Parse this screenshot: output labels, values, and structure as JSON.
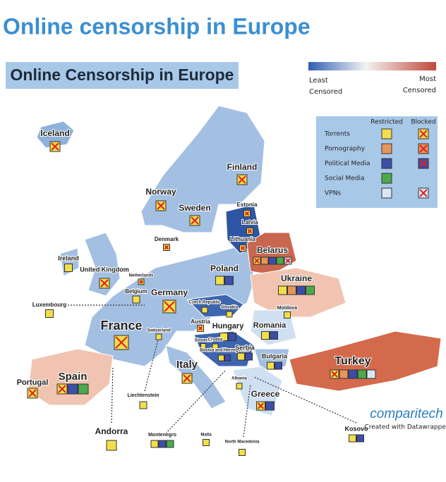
{
  "header": {
    "title": "Online censorship in Europe"
  },
  "map": {
    "title": "Online Censorship in Europe",
    "scale": {
      "least": "Least",
      "least_sub": "Censored",
      "most": "Most",
      "most_sub": "Censored"
    },
    "legend": {
      "columns": [
        "Restricted",
        "Blocked"
      ],
      "rows": [
        "Torrents",
        "Pornography",
        "Political Media",
        "Social Media",
        "VPNs"
      ]
    },
    "countries": [
      "Iceland",
      "Finland",
      "Norway",
      "Sweden",
      "Estonia",
      "Latvia",
      "Lithuania",
      "Denmark",
      "Belarus",
      "Ireland",
      "United Kingdom",
      "Netherlands",
      "Poland",
      "Belgium",
      "Germany",
      "Luxembourg",
      "Ukraine",
      "Czech Republic",
      "Slovakia",
      "Moldova",
      "France",
      "Austria",
      "Hungary",
      "Romania",
      "Switzerland",
      "Slovenia",
      "Croatia",
      "Bosnia and Herzegovina",
      "Serbia",
      "Bulgaria",
      "Turkey",
      "Italy",
      "Portugal",
      "Spain",
      "Liechtenstein",
      "Albania",
      "Greece",
      "Andorra",
      "Montenegro",
      "Malta",
      "North Macedonia",
      "Kosovo"
    ],
    "brand": "comparitech",
    "credit": "Created with Datawrapper"
  }
}
